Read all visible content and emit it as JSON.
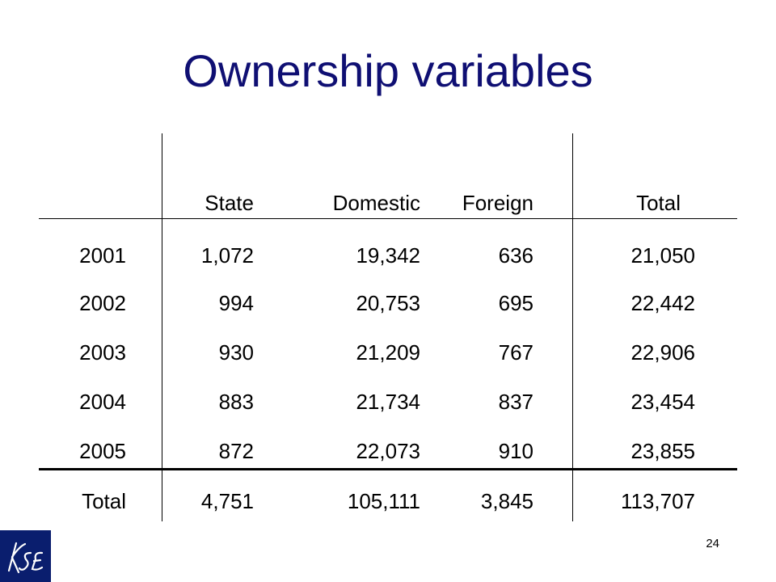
{
  "title": "Ownership variables",
  "table": {
    "headers": [
      "",
      "State",
      "Domestic",
      "Foreign",
      "Total"
    ],
    "rows": [
      [
        "2001",
        "1,072",
        "19,342",
        "636",
        "21,050"
      ],
      [
        "2002",
        "994",
        "20,753",
        "695",
        "22,442"
      ],
      [
        "2003",
        "930",
        "21,209",
        "767",
        "22,906"
      ],
      [
        "2004",
        "883",
        "21,734",
        "837",
        "23,454"
      ],
      [
        "2005",
        "872",
        "22,073",
        "910",
        "23,855"
      ]
    ],
    "total": [
      "Total",
      "4,751",
      "105,111",
      "3,845",
      "113,707"
    ]
  },
  "logo": {
    "text": "KSE",
    "bg": "#0a1e6e"
  },
  "page_number": "24",
  "colors": {
    "title": "#0f0f73"
  }
}
